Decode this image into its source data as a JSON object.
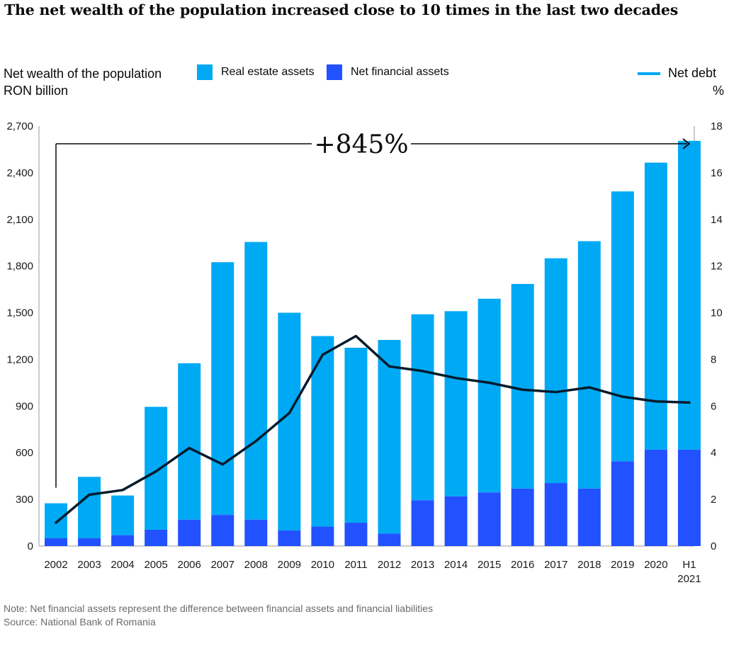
{
  "title": "The net wealth of the population increased close to 10 times in the last two decades",
  "left_axis_title": "Net wealth of the population",
  "left_axis_unit": "RON billion",
  "right_axis_unit": "%",
  "legend": {
    "real_estate": "Real estate assets",
    "net_financial": "Net financial assets",
    "net_debt": "Net debt"
  },
  "colors": {
    "real_estate": "#00a9f4",
    "net_financial": "#2251ff",
    "net_debt": "#051c2c"
  },
  "annotation": "+845%",
  "note": "Note: Net financial assets represent the difference between financial assets and financial liabilities",
  "source": "Source: National Bank of Romania",
  "chart_data": {
    "type": "bar",
    "stacked": true,
    "categories": [
      "2002",
      "2003",
      "2004",
      "2005",
      "2006",
      "2007",
      "2008",
      "2009",
      "2010",
      "2011",
      "2012",
      "2013",
      "2014",
      "2015",
      "2016",
      "2017",
      "2018",
      "2019",
      "2020",
      "H1 2021"
    ],
    "series": [
      {
        "name": "Net financial assets",
        "values": [
          50,
          50,
          70,
          105,
          170,
          200,
          170,
          100,
          125,
          150,
          80,
          295,
          320,
          345,
          370,
          405,
          370,
          545,
          620,
          620
        ]
      },
      {
        "name": "Real estate assets",
        "values": [
          225,
          395,
          255,
          790,
          1005,
          1625,
          1785,
          1400,
          1225,
          1125,
          1245,
          1195,
          1190,
          1245,
          1315,
          1445,
          1590,
          1735,
          1845,
          1985
        ]
      },
      {
        "name": "Net debt",
        "axis": "right",
        "type": "line",
        "values": [
          1.0,
          2.2,
          2.4,
          3.2,
          4.2,
          3.5,
          4.5,
          5.7,
          8.2,
          9.0,
          7.7,
          7.5,
          7.2,
          7.0,
          6.7,
          6.6,
          6.8,
          6.4,
          6.2,
          6.15
        ]
      }
    ],
    "yticks": [
      "0",
      "300",
      "600",
      "900",
      "1,200",
      "1,500",
      "1,800",
      "2,100",
      "2,400",
      "2,700"
    ],
    "ylim": [
      0,
      2700
    ],
    "y2ticks": [
      "0",
      "2",
      "4",
      "6",
      "8",
      "10",
      "12",
      "14",
      "16",
      "18"
    ],
    "y2lim": [
      0,
      18
    ],
    "ylabel": "Net wealth of the population, RON billion",
    "y2label": "%"
  }
}
